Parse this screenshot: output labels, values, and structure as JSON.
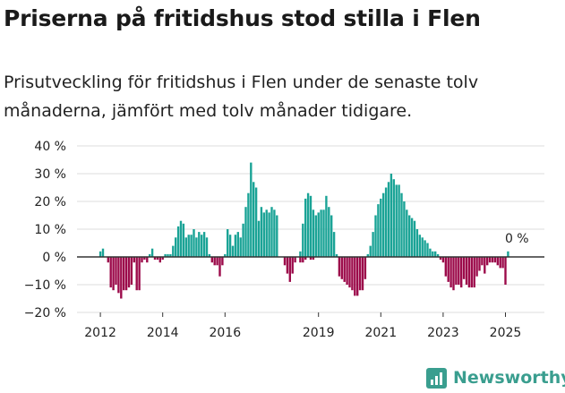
{
  "header": {
    "title": "Priserna på fritidshus stod stilla i Flen",
    "subtitle": "Prisutveckling för fritidshus i Flen under de senaste tolv månaderna, jämfört med tolv månader tidigare."
  },
  "brand": {
    "name": "Newsworthy"
  },
  "colors": {
    "positive": "#1aa396",
    "negative": "#9c0a4a",
    "brand": "#3a9e8f"
  },
  "chart_data": {
    "type": "bar",
    "title": "Priserna på fritidshus stod stilla i Flen",
    "subtitle": "Prisutveckling för fritidshus i Flen under de senaste tolv månaderna, jämfört med tolv månader tidigare.",
    "xlabel": "",
    "ylabel": "",
    "unit": "%",
    "ylim": [
      -20,
      40
    ],
    "yticks": [
      40,
      30,
      20,
      10,
      0,
      -10,
      -20
    ],
    "ytick_labels": [
      "40 %",
      "30 %",
      "20 %",
      "10 %",
      "0 %",
      "−10 %",
      "−20 %"
    ],
    "xticks": [
      "2012",
      "2014",
      "2016",
      "2019",
      "2021",
      "2023",
      "2025"
    ],
    "grid": true,
    "annotation": {
      "label": "0 %",
      "value": 0
    },
    "segments": [
      {
        "start_year": 2012,
        "start_month": 1,
        "values": [
          2,
          3,
          0,
          -2,
          -11,
          -12,
          -10,
          -13,
          -15,
          -12,
          -12,
          -11,
          -10,
          -2,
          -12,
          -12,
          -2,
          -1,
          -2,
          1,
          3,
          -1,
          -1,
          -2,
          -1,
          1,
          1,
          1,
          4,
          7,
          11,
          13,
          12,
          7,
          8,
          8,
          10,
          7,
          9,
          8,
          9,
          7,
          1,
          -2,
          -3,
          -3,
          -7,
          -3,
          1,
          10,
          8,
          4,
          8,
          9,
          7,
          12,
          18,
          23,
          34,
          27,
          25,
          13,
          18,
          16,
          17,
          16,
          18,
          17,
          15
        ]
      },
      {
        "start_year": 2017,
        "start_month": 12,
        "values": [
          -3,
          -6,
          -9,
          -6,
          -2,
          0,
          -2,
          -2,
          -1,
          0,
          -1,
          -1
        ]
      },
      {
        "start_year": 2018,
        "start_month": 6,
        "values": [
          2,
          12,
          21,
          23,
          22,
          17,
          15,
          16,
          17,
          17,
          22,
          18,
          15,
          9,
          1,
          -7,
          -8,
          -9,
          -10,
          -11,
          -12,
          -14,
          -14,
          -12,
          -12,
          -8,
          1,
          4,
          9,
          15,
          19,
          21,
          23,
          25,
          27,
          30,
          28,
          26,
          26,
          23,
          20,
          17,
          15,
          14,
          13,
          10,
          8,
          7,
          6,
          5,
          3,
          2,
          2,
          1,
          -1,
          -2,
          -7,
          -9,
          -11,
          -12,
          -10,
          -10,
          -11,
          -8,
          -10,
          -11,
          -11,
          -11,
          -7,
          -5,
          -3,
          -6,
          -3,
          -2,
          -2,
          -2,
          -3,
          -4,
          -4,
          -10,
          2,
          0
        ]
      }
    ]
  }
}
